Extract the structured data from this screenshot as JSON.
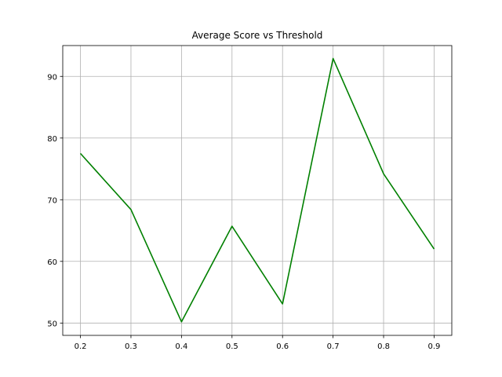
{
  "chart_data": {
    "type": "line",
    "title": "Average Score vs Threshold",
    "xlabel": "",
    "ylabel": "",
    "x": [
      0.2,
      0.3,
      0.4,
      0.5,
      0.6,
      0.7,
      0.8,
      0.9
    ],
    "series": [
      {
        "values": [
          77.5,
          68.4,
          50.2,
          65.7,
          53.1,
          92.9,
          74.2,
          62.0
        ],
        "color": "#008000"
      }
    ],
    "xlim": [
      0.165,
      0.935
    ],
    "ylim": [
      48.0,
      95.0
    ],
    "xticks": [
      "0.2",
      "0.3",
      "0.4",
      "0.5",
      "0.6",
      "0.7",
      "0.8",
      "0.9"
    ],
    "yticks": [
      "50",
      "60",
      "70",
      "80",
      "90"
    ],
    "grid": true
  }
}
